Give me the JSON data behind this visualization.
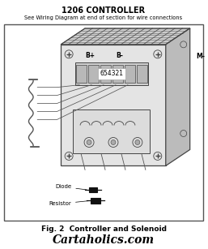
{
  "title": "1206 CONTROLLER",
  "subtitle": "See Wiring Diagram at end of section for wire connections",
  "fig_label": "Fig. 2  Controller and Solenoid",
  "watermark": "Cartaholics.com",
  "bg_color": "#f5f5f5",
  "border_color": "#555555",
  "lc": "#444444",
  "dc": "#111111",
  "labels": {
    "B_plus": "B+",
    "B_minus": "B-",
    "M_minus": "M-",
    "diode": "Diode",
    "resistor": "Resistor",
    "numbers": "654321"
  }
}
